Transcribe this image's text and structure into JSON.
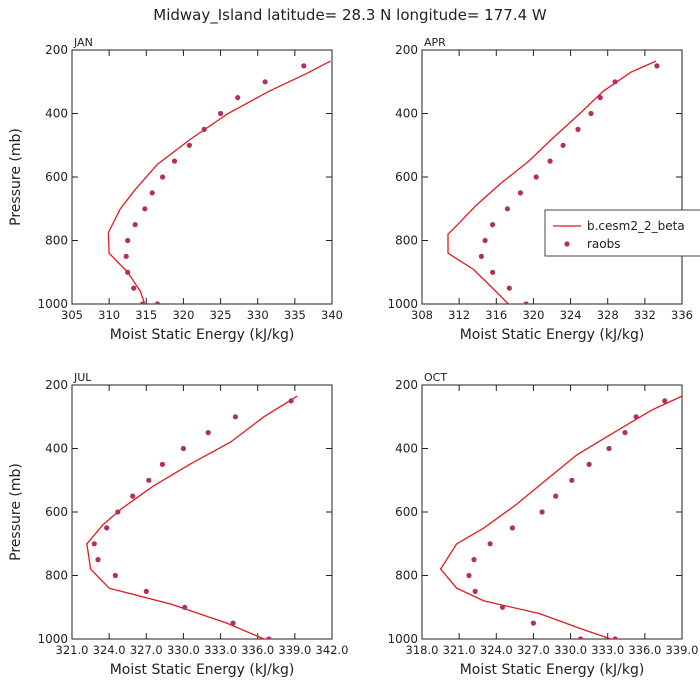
{
  "figure": {
    "title": "Midway_Island   latitude= 28.3 N longitude= 177.4 W",
    "line_color": "#e41a1c",
    "dot_color": "#b03060",
    "legend": {
      "line_label": "b.cesm2_2_beta",
      "dot_label": "raobs"
    }
  },
  "chart_data": [
    {
      "type": "line",
      "panel": "JAN",
      "xlabel": "Moist Static Energy (kJ/kg)",
      "ylabel": "Pressure (mb)",
      "xlim": [
        305,
        340
      ],
      "ylim": [
        1000,
        200
      ],
      "xticks": [
        "305",
        "310",
        "315",
        "320",
        "325",
        "330",
        "335",
        "340"
      ],
      "xtick_values": [
        305,
        310,
        315,
        320,
        325,
        330,
        335,
        340
      ],
      "yticks": [
        200,
        400,
        600,
        800,
        1000
      ],
      "series": [
        {
          "name": "b.cesm2_2_beta",
          "kind": "line",
          "x": [
            339.8,
            336.5,
            331.5,
            326,
            321,
            316.5,
            313.5,
            311.5,
            309.9,
            310,
            312.5,
            314.2,
            314.8
          ],
          "y": [
            235,
            275,
            330,
            400,
            480,
            560,
            640,
            700,
            775,
            840,
            900,
            960,
            1000
          ]
        },
        {
          "name": "raobs",
          "kind": "points",
          "x": [
            336.2,
            331.0,
            327.3,
            325.0,
            322.8,
            320.8,
            318.8,
            317.2,
            315.8,
            314.8,
            313.5,
            312.5,
            312.3,
            312.5,
            313.3,
            314.5,
            316.5
          ],
          "y": [
            250,
            300,
            350,
            400,
            450,
            500,
            550,
            600,
            650,
            700,
            750,
            800,
            850,
            900,
            950,
            1000,
            1000
          ]
        }
      ]
    },
    {
      "type": "line",
      "panel": "APR",
      "xlabel": "Moist Static Energy (kJ/kg)",
      "ylabel": "Pressure (mb)",
      "xlim": [
        308,
        336
      ],
      "ylim": [
        1000,
        200
      ],
      "xticks": [
        "308",
        "312",
        "316",
        "320",
        "324",
        "328",
        "332",
        "336"
      ],
      "xtick_values": [
        308,
        312,
        316,
        320,
        324,
        328,
        332,
        336
      ],
      "yticks": [
        200,
        400,
        600,
        800,
        1000
      ],
      "series": [
        {
          "name": "b.cesm2_2_beta",
          "kind": "line",
          "x": [
            333.2,
            330.5,
            327.5,
            325,
            322,
            319.5,
            316.5,
            313.8,
            311.5,
            310.8,
            310.8,
            313.5,
            315.6,
            317.3
          ],
          "y": [
            235,
            270,
            330,
            400,
            480,
            550,
            620,
            690,
            760,
            780,
            840,
            890,
            950,
            1000
          ]
        },
        {
          "name": "raobs",
          "kind": "points",
          "x": [
            333.3,
            328.8,
            327.2,
            326.2,
            324.8,
            323.2,
            321.8,
            320.3,
            318.6,
            317.2,
            315.6,
            314.8,
            314.4,
            315.6,
            317.4,
            319.2
          ],
          "y": [
            250,
            300,
            350,
            400,
            450,
            500,
            550,
            600,
            650,
            700,
            750,
            800,
            850,
            900,
            950,
            1000
          ]
        }
      ]
    },
    {
      "type": "line",
      "panel": "JUL",
      "xlabel": "Moist Static Energy (kJ/kg)",
      "ylabel": "Pressure (mb)",
      "xlim": [
        321.0,
        342.0
      ],
      "ylim": [
        1000,
        200
      ],
      "xticks": [
        "321.0",
        "324.0",
        "327.0",
        "330.0",
        "333.0",
        "336.0",
        "339.0",
        "342.0"
      ],
      "xtick_values": [
        321,
        324,
        327,
        330,
        333,
        336,
        339,
        342
      ],
      "yticks": [
        200,
        400,
        600,
        800,
        1000
      ],
      "series": [
        {
          "name": "b.cesm2_2_beta",
          "kind": "line",
          "x": [
            339.2,
            336.5,
            333.8,
            330.5,
            327.5,
            325,
            323.5,
            322.2,
            322.5,
            324,
            329,
            333.5,
            336.5,
            337.5
          ],
          "y": [
            235,
            300,
            380,
            450,
            520,
            590,
            640,
            700,
            780,
            840,
            890,
            950,
            1000,
            1020
          ]
        },
        {
          "name": "raobs",
          "kind": "points",
          "x": [
            338.7,
            334.2,
            332.0,
            330.0,
            328.3,
            327.2,
            325.9,
            324.7,
            323.8,
            322.8,
            323.1,
            324.5,
            327.0,
            330.1,
            334.0,
            336.9
          ],
          "y": [
            250,
            300,
            350,
            400,
            450,
            500,
            550,
            600,
            650,
            700,
            750,
            800,
            850,
            900,
            950,
            1000
          ]
        }
      ]
    },
    {
      "type": "line",
      "panel": "OCT",
      "xlabel": "Moist Static Energy (kJ/kg)",
      "ylabel": "Pressure (mb)",
      "xlim": [
        318.0,
        339.0
      ],
      "ylim": [
        1000,
        200
      ],
      "xticks": [
        "318.0",
        "321.0",
        "324.0",
        "327.0",
        "330.0",
        "333.0",
        "336.0",
        "339.0"
      ],
      "xtick_values": [
        318,
        321,
        324,
        327,
        330,
        333,
        336,
        339
      ],
      "yticks": [
        200,
        400,
        600,
        800,
        1000
      ],
      "series": [
        {
          "name": "b.cesm2_2_beta",
          "kind": "line",
          "x": [
            339,
            336.5,
            333.5,
            330.5,
            328,
            325.5,
            323,
            320.8,
            319.5,
            320.8,
            323,
            327.5,
            331,
            334
          ],
          "y": [
            235,
            280,
            350,
            420,
            500,
            580,
            650,
            700,
            780,
            840,
            880,
            920,
            970,
            1010
          ]
        },
        {
          "name": "raobs",
          "kind": "points",
          "x": [
            337.6,
            335.3,
            334.4,
            333.1,
            331.5,
            330.1,
            328.8,
            327.7,
            325.3,
            323.5,
            322.2,
            321.8,
            322.3,
            324.5,
            327.0,
            330.8,
            333.6
          ],
          "y": [
            250,
            300,
            350,
            400,
            450,
            500,
            550,
            600,
            650,
            700,
            750,
            800,
            850,
            900,
            950,
            1000,
            1000
          ]
        }
      ]
    }
  ]
}
